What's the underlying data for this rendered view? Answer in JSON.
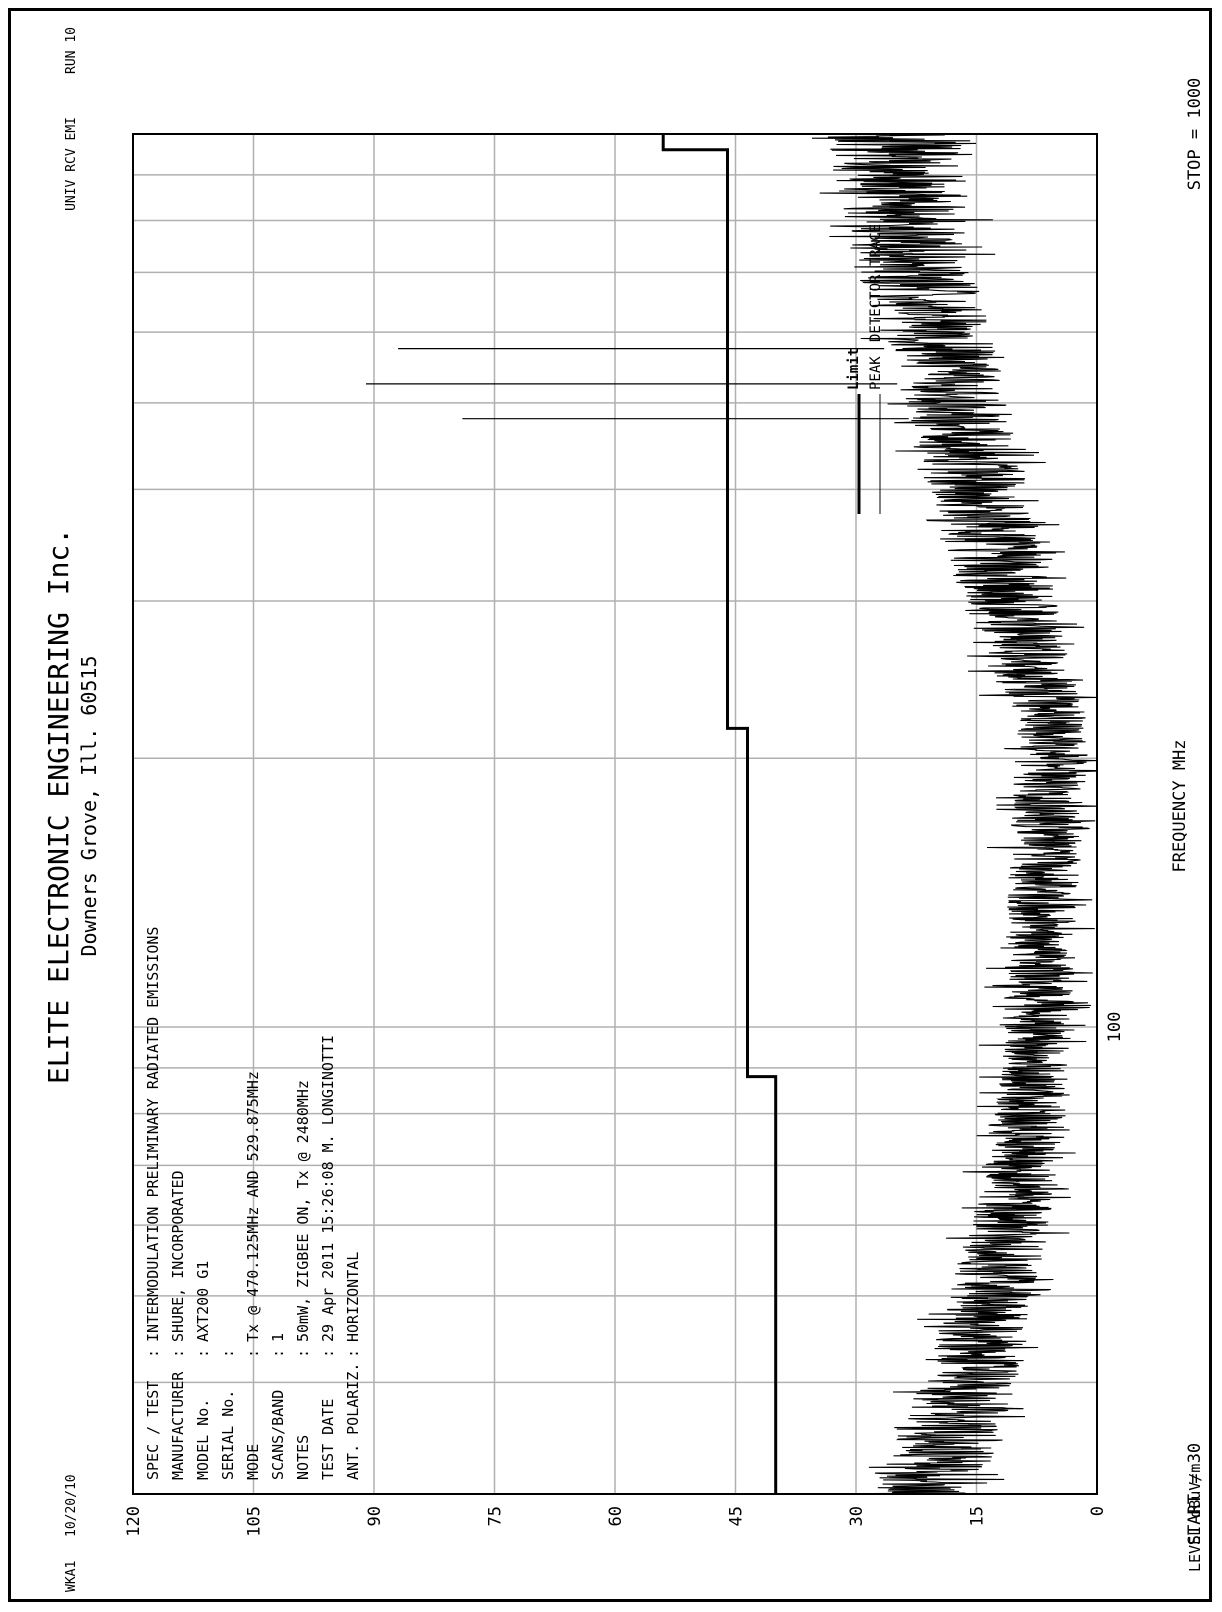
{
  "header": {
    "company": "ELITE ELECTRONIC ENGINEERING Inc.",
    "location": "Downers Grove, Ill. 60515",
    "left_code": "WKA1",
    "left_date": "10/20/10",
    "right_code": "UNIV RCV EMI",
    "run": "RUN 10"
  },
  "info": {
    "rows": [
      {
        "label": "SPEC / TEST",
        "value": "INTERMODULATION PRELIMINARY RADIATED EMISSIONS"
      },
      {
        "label": "MANUFACTURER",
        "value": "SHURE, INCORPORATED"
      },
      {
        "label": "MODEL No.",
        "value": "AXT200 G1"
      },
      {
        "label": "SERIAL No.",
        "value": ""
      },
      {
        "label": "MODE",
        "value": "Tx @ 470.125MHz AND 529.875MHz"
      },
      {
        "label": "SCANS/BAND",
        "value": "1"
      },
      {
        "label": "NOTES",
        "value": "50mW, ZIGBEE ON, Tx @ 2480MHz"
      },
      {
        "label": "TEST DATE",
        "value": "29 Apr 2011 15:26:08  M. LONGINOTTI"
      },
      {
        "label": "ANT. POLARIZ.",
        "value": "HORIZONTAL"
      }
    ]
  },
  "legend": {
    "limit_label": "Limit",
    "peak_label": "PEAK",
    "detector_label": "DETECTOR TRACE"
  },
  "footer": {
    "start": "START = 30",
    "stop": "STOP = 1000"
  },
  "chart_data": {
    "type": "line",
    "xlabel": "FREQUENCY  MHz",
    "ylabel": "LEVEL dBuV/m",
    "x_scale": "log",
    "xlim": [
      30,
      1000
    ],
    "ylim": [
      0,
      120
    ],
    "x_tick_labels": [
      {
        "value": 100,
        "label": "100"
      }
    ],
    "y_ticks": [
      0,
      15,
      30,
      45,
      60,
      75,
      90,
      105,
      120
    ],
    "grid": true,
    "legend_position": "top-right",
    "series": [
      {
        "name": "Limit",
        "x": [
          30,
          88,
          88,
          216,
          216,
          960,
          960,
          1000
        ],
        "y": [
          40,
          40,
          43.5,
          43.5,
          46,
          46,
          54,
          54
        ]
      },
      {
        "name": "PEAK",
        "noise_band": {
          "x": [
            30,
            40,
            60,
            88,
            150,
            216,
            300,
            500,
            700,
            1000
          ],
          "lower": [
            14,
            10,
            6,
            3,
            2,
            1,
            5,
            11,
            15,
            17
          ],
          "upper": [
            28,
            22,
            16,
            12,
            11,
            10,
            17,
            24,
            30,
            34
          ]
        },
        "spikes": [
          {
            "x": 575,
            "y": 87
          },
          {
            "x": 525,
            "y": 91
          },
          {
            "x": 480,
            "y": 79
          }
        ]
      }
    ]
  }
}
